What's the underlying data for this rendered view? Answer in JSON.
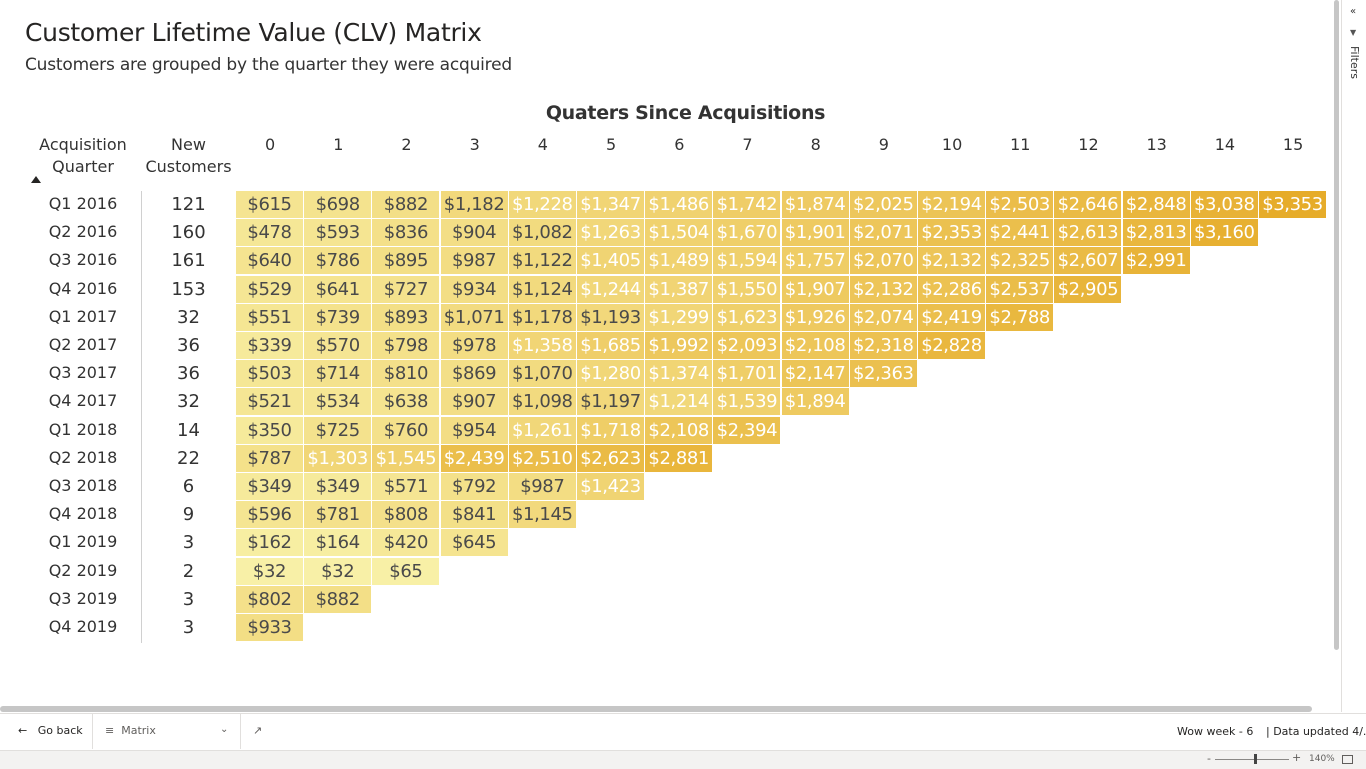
{
  "report": {
    "title": "Customer Lifetime Value (CLV) Matrix",
    "subtitle": "Customers are grouped by the quarter they were acquired"
  },
  "matrix": {
    "column_group_title": "Quaters Since Acquisitions",
    "header_quarter": "Acquisition Quarter",
    "header_customers": "New Customers",
    "quarters_since": [
      "0",
      "1",
      "2",
      "3",
      "4",
      "5",
      "6",
      "7",
      "8",
      "9",
      "10",
      "11",
      "12",
      "13",
      "14",
      "15"
    ],
    "color_low": "#f8f1a8",
    "color_high": "#e6ac2a",
    "max_value": 3353,
    "rows": [
      {
        "quarter": "Q1 2016",
        "customers": "121",
        "values": [
          615,
          698,
          882,
          1182,
          1228,
          1347,
          1486,
          1742,
          1874,
          2025,
          2194,
          2503,
          2646,
          2848,
          3038,
          3353
        ]
      },
      {
        "quarter": "Q2 2016",
        "customers": "160",
        "values": [
          478,
          593,
          836,
          904,
          1082,
          1263,
          1504,
          1670,
          1901,
          2071,
          2353,
          2441,
          2613,
          2813,
          3160
        ]
      },
      {
        "quarter": "Q3 2016",
        "customers": "161",
        "values": [
          640,
          786,
          895,
          987,
          1122,
          1405,
          1489,
          1594,
          1757,
          2070,
          2132,
          2325,
          2607,
          2991
        ]
      },
      {
        "quarter": "Q4 2016",
        "customers": "153",
        "values": [
          529,
          641,
          727,
          934,
          1124,
          1244,
          1387,
          1550,
          1907,
          2132,
          2286,
          2537,
          2905
        ]
      },
      {
        "quarter": "Q1 2017",
        "customers": "32",
        "values": [
          551,
          739,
          893,
          1071,
          1178,
          1193,
          1299,
          1623,
          1926,
          2074,
          2419,
          2788
        ]
      },
      {
        "quarter": "Q2 2017",
        "customers": "36",
        "values": [
          339,
          570,
          798,
          978,
          1358,
          1685,
          1992,
          2093,
          2108,
          2318,
          2828
        ]
      },
      {
        "quarter": "Q3 2017",
        "customers": "36",
        "values": [
          503,
          714,
          810,
          869,
          1070,
          1280,
          1374,
          1701,
          2147,
          2363
        ]
      },
      {
        "quarter": "Q4 2017",
        "customers": "32",
        "values": [
          521,
          534,
          638,
          907,
          1098,
          1197,
          1214,
          1539,
          1894
        ]
      },
      {
        "quarter": "Q1 2018",
        "customers": "14",
        "values": [
          350,
          725,
          760,
          954,
          1261,
          1718,
          2108,
          2394
        ]
      },
      {
        "quarter": "Q2 2018",
        "customers": "22",
        "values": [
          787,
          1303,
          1545,
          2439,
          2510,
          2623,
          2881
        ]
      },
      {
        "quarter": "Q3 2018",
        "customers": "6",
        "values": [
          349,
          349,
          571,
          792,
          987,
          1423
        ]
      },
      {
        "quarter": "Q4 2018",
        "customers": "9",
        "values": [
          596,
          781,
          808,
          841,
          1145
        ]
      },
      {
        "quarter": "Q1 2019",
        "customers": "3",
        "values": [
          162,
          164,
          420,
          645
        ]
      },
      {
        "quarter": "Q2 2019",
        "customers": "2",
        "values": [
          32,
          32,
          65
        ]
      },
      {
        "quarter": "Q3 2019",
        "customers": "3",
        "values": [
          802,
          882
        ]
      },
      {
        "quarter": "Q4 2019",
        "customers": "3",
        "values": [
          933
        ]
      }
    ]
  },
  "side_pane": {
    "filters_label": "Filters",
    "collapse_icon": "chevron-left-icon",
    "filter_icon": "funnel-icon"
  },
  "footer": {
    "go_back": "Go back",
    "page_name": "Matrix",
    "wow": "Wow week - 6",
    "updated": "| Data updated 4/...",
    "zoom": "140%"
  }
}
